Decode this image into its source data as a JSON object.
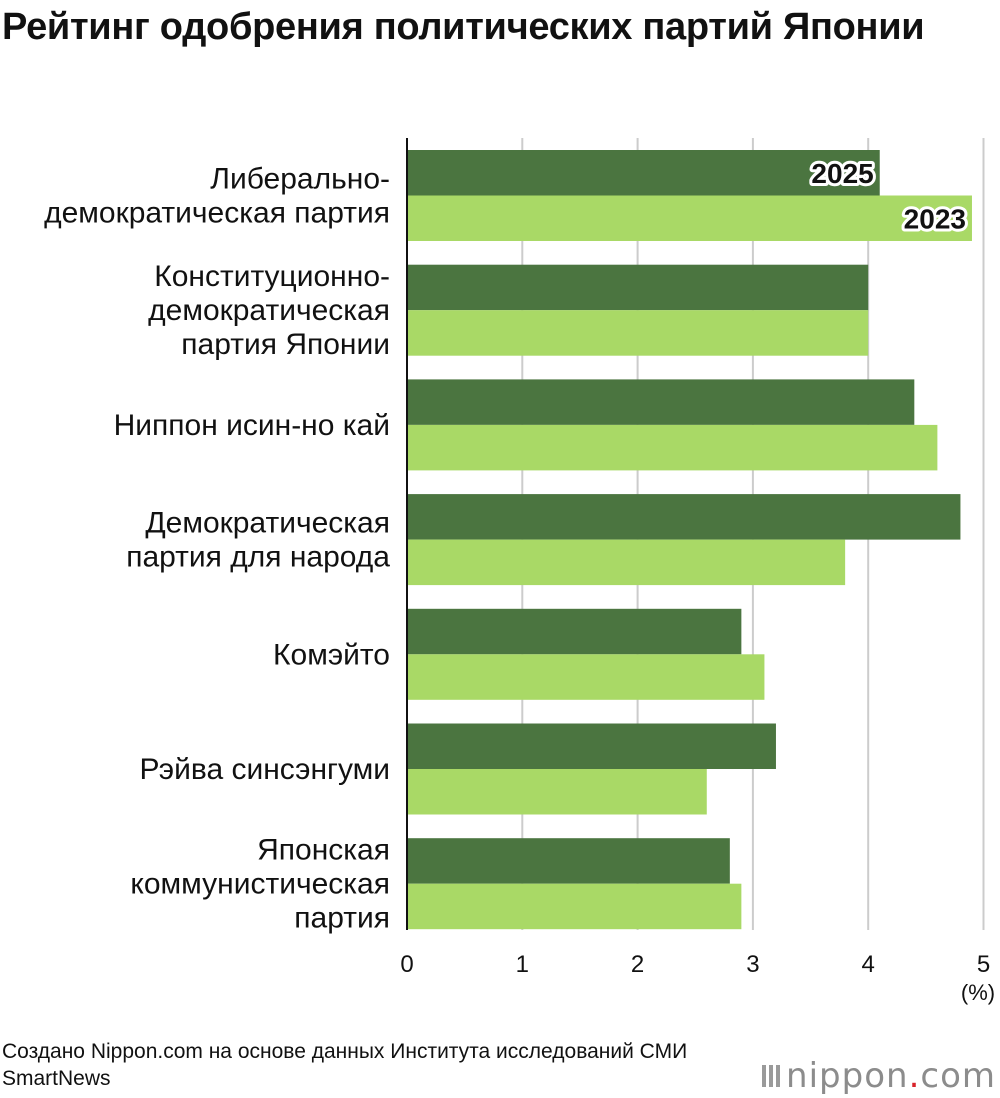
{
  "title": "Рейтинг одобрения политических партий Японии",
  "source": "Создано Nippon.com на основе данных Института исследований СМИ SmartNews",
  "logo": {
    "name": "nippon",
    "dot": ".",
    "suffix": "com"
  },
  "colors": {
    "series_2025": "#4b7540",
    "series_2023": "#a9d966",
    "grid": "#cccccc",
    "axis": "#111111"
  },
  "chart_data": {
    "type": "bar",
    "orientation": "horizontal",
    "title": "Рейтинг одобрения политических партий Японии",
    "categories": [
      [
        "Либерально-",
        "демократическая партия"
      ],
      [
        "Конституционно-",
        "демократическая",
        "партия Японии"
      ],
      [
        "Ниппон исин-но кай"
      ],
      [
        "Демократическая",
        "партия для народа"
      ],
      [
        "Комэйто"
      ],
      [
        "Рэйва синсэнгуми"
      ],
      [
        "Японская",
        "коммунистическая",
        "партия"
      ]
    ],
    "series": [
      {
        "name": "2025",
        "values": [
          4.1,
          4.0,
          4.4,
          4.8,
          2.9,
          3.2,
          2.8
        ]
      },
      {
        "name": "2023",
        "values": [
          4.9,
          4.0,
          4.6,
          3.8,
          3.1,
          2.6,
          2.9
        ]
      }
    ],
    "xlim": [
      0,
      5
    ],
    "xticks": [
      0,
      1,
      2,
      3,
      4,
      5
    ],
    "xunit": "(%)",
    "grid": true,
    "legend": "inside first bars"
  }
}
